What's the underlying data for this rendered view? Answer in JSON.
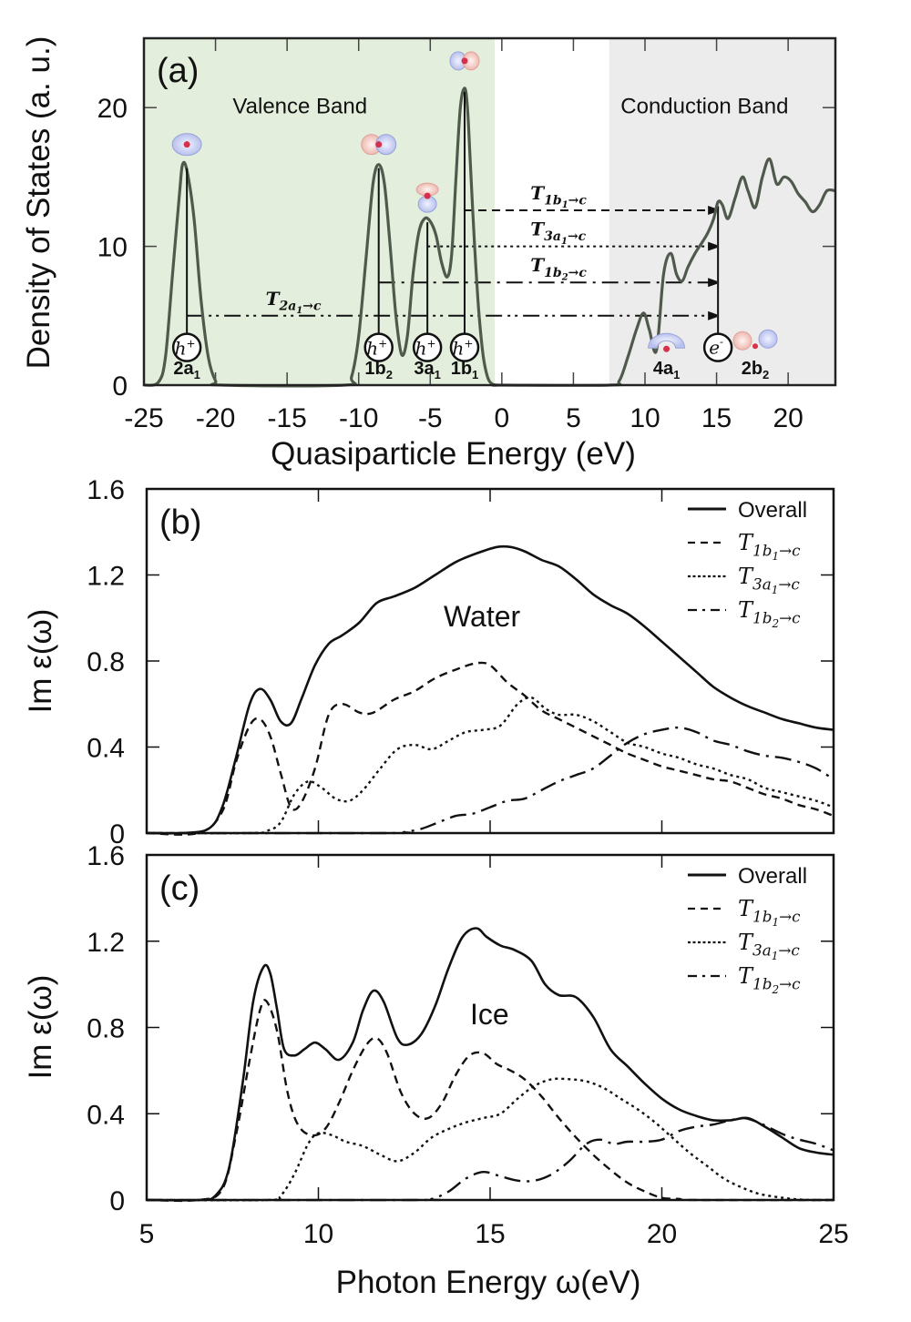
{
  "chart_data": [
    {
      "panel": "(a)",
      "type": "line",
      "xlabel": "Quasiparticle Energy (eV)",
      "ylabel": "Density of States (a. u.)",
      "xlim": [
        -25,
        23.3
      ],
      "ylim": [
        0,
        25
      ],
      "xticks": [
        -25,
        -20,
        -15,
        -10,
        -5,
        0,
        5,
        10,
        15,
        20
      ],
      "yticks": [
        0,
        10,
        20
      ],
      "grid": false,
      "regions": [
        {
          "label": "Valence Band",
          "x_range": [
            -25,
            -0.5
          ],
          "color": "#e3efdc"
        },
        {
          "label": "Conduction Band",
          "x_range": [
            7.5,
            23.3
          ],
          "color": "#ececec"
        }
      ],
      "curve_color": "#4f5a4c",
      "dos": {
        "x": [
          -25,
          -24,
          -23.5,
          -23,
          -22.5,
          -22.3,
          -22,
          -21.5,
          -21,
          -20.5,
          -20,
          -19.5,
          -11,
          -10.5,
          -10,
          -9.5,
          -9,
          -8.6,
          -8.2,
          -7.8,
          -7.4,
          -7,
          -6.6,
          -6.2,
          -5.8,
          -5.4,
          -5,
          -4.6,
          -4.2,
          -3.8,
          -3.5,
          -3.2,
          -2.9,
          -2.6,
          -2.4,
          -2.2,
          -1.9,
          -1.6,
          -1.3,
          -1,
          -0.7,
          -0.3,
          0,
          7.5,
          8.2,
          8.8,
          9.4,
          9.9,
          10.3,
          10.8,
          11.3,
          11.8,
          12.2,
          12.6,
          13.0,
          13.5,
          14.0,
          14.4,
          14.8,
          15.1,
          15.4,
          15.8,
          16.3,
          16.8,
          17.2,
          17.7,
          18.2,
          18.7,
          19.2,
          19.7,
          20.2,
          20.7,
          21.2,
          21.7,
          22.2,
          22.7,
          23.3
        ],
        "y": [
          0,
          0.2,
          2,
          8,
          14,
          15.9,
          15.5,
          12,
          6,
          2,
          0.3,
          0,
          0,
          0.6,
          3.5,
          9,
          14.5,
          15.9,
          14.5,
          10,
          5,
          2.2,
          3.5,
          8,
          11,
          12,
          11.8,
          10.8,
          8.8,
          7.8,
          9.5,
          15,
          20,
          21.4,
          20,
          16,
          10,
          5.2,
          2.1,
          0.6,
          0.1,
          0,
          0,
          0,
          0.3,
          2,
          4,
          5.2,
          4,
          2.5,
          8,
          9.5,
          8,
          7.5,
          8.5,
          9.5,
          10.3,
          11,
          12,
          13.2,
          13,
          12,
          13.5,
          15,
          14,
          12.8,
          15,
          16.3,
          14.5,
          15,
          14.7,
          13.8,
          13.2,
          12.5,
          13,
          14,
          14
        ]
      },
      "annotations": [
        {
          "text": "(a)"
        },
        {
          "text": "Valence Band"
        },
        {
          "text": "Conduction Band"
        }
      ],
      "holes": [
        {
          "orbital": "2a",
          "sub": "1",
          "x": -22,
          "peak": 15.9
        },
        {
          "orbital": "1b",
          "sub": "2",
          "x": -8.6,
          "peak": 15.9
        },
        {
          "orbital": "3a",
          "sub": "1",
          "x": -5.2,
          "peak": 12.0
        },
        {
          "orbital": "1b",
          "sub": "1",
          "x": -2.6,
          "peak": 21.4
        }
      ],
      "hole_symbol": "h",
      "hole_sup": "+",
      "electron": {
        "symbol": "e",
        "sup": "-",
        "x": 15.1
      },
      "unoccupied_orbitals": [
        {
          "orbital": "4a",
          "sub": "1"
        },
        {
          "orbital": "2b",
          "sub": "2"
        }
      ],
      "transitions": [
        {
          "label": "T",
          "sub": "1b",
          "subsub": "1",
          "arrow": "→c",
          "from_x": -2.6,
          "to_x": 15.1,
          "level": 12.6,
          "style": "dashed"
        },
        {
          "label": "T",
          "sub": "3a",
          "subsub": "1",
          "arrow": "→c",
          "from_x": -5.2,
          "to_x": 15.1,
          "level": 10.0,
          "style": "dotted"
        },
        {
          "label": "T",
          "sub": "1b",
          "subsub": "2",
          "arrow": "→c",
          "from_x": -8.6,
          "to_x": 15.1,
          "level": 7.4,
          "style": "dashdot"
        },
        {
          "label": "T",
          "sub": "2a",
          "subsub": "1",
          "arrow": "→c",
          "from_x": -22,
          "to_x": 15.1,
          "level": 5.0,
          "style": "dashdotdot"
        }
      ]
    },
    {
      "panel": "(b)",
      "type": "line",
      "title": "Water",
      "xlabel": "",
      "ylabel": "Im ε(ω)",
      "xlim": [
        5,
        25
      ],
      "ylim": [
        0,
        1.6
      ],
      "xticks": [
        5,
        10,
        15,
        20,
        25
      ],
      "yticks": [
        0,
        0.4,
        0.8,
        1.2,
        1.6
      ],
      "ytick_labels": [
        "0",
        "0.4",
        "0.8",
        "1.2",
        "1.6"
      ],
      "legend_position": "top-right",
      "series": [
        {
          "name": "Overall",
          "style": "solid",
          "x": [
            5,
            6,
            6.8,
            7.2,
            7.6,
            8.0,
            8.3,
            8.6,
            8.9,
            9.2,
            9.5,
            9.9,
            10.3,
            10.7,
            11.2,
            11.7,
            12.2,
            12.8,
            13.4,
            14.0,
            14.6,
            15.2,
            15.6,
            16.0,
            16.5,
            17.0,
            17.5,
            18.0,
            18.5,
            19.0,
            19.5,
            20.0,
            20.5,
            21.0,
            21.5,
            22.0,
            22.5,
            23.0,
            23.5,
            24.0,
            24.5,
            25
          ],
          "y": [
            0,
            0,
            0.02,
            0.12,
            0.35,
            0.6,
            0.67,
            0.62,
            0.52,
            0.51,
            0.62,
            0.78,
            0.88,
            0.92,
            0.98,
            1.07,
            1.1,
            1.14,
            1.2,
            1.26,
            1.3,
            1.33,
            1.33,
            1.31,
            1.27,
            1.24,
            1.18,
            1.11,
            1.06,
            1.02,
            0.96,
            0.89,
            0.82,
            0.75,
            0.68,
            0.63,
            0.59,
            0.56,
            0.53,
            0.51,
            0.49,
            0.48
          ]
        },
        {
          "name": "T1b1→c",
          "label": "T",
          "sub": "1b",
          "subsub": "1",
          "arrow": "→c",
          "style": "dashed",
          "x": [
            5,
            6.5,
            7.2,
            7.6,
            8.0,
            8.3,
            8.6,
            8.9,
            9.2,
            9.5,
            9.9,
            10.3,
            10.7,
            11.2,
            11.6,
            12.2,
            12.8,
            13.4,
            14.0,
            14.6,
            15.0,
            15.5,
            16.0,
            16.5,
            17.0,
            17.5,
            18.0,
            18.5,
            19.0,
            19.5,
            20.0,
            20.5,
            21.0,
            21.5,
            22.0,
            22.5,
            23.0,
            23.5,
            24.0,
            24.5,
            25
          ],
          "y": [
            0,
            0,
            0.1,
            0.33,
            0.5,
            0.53,
            0.45,
            0.28,
            0.12,
            0.14,
            0.3,
            0.55,
            0.6,
            0.56,
            0.56,
            0.62,
            0.66,
            0.72,
            0.76,
            0.79,
            0.78,
            0.7,
            0.64,
            0.57,
            0.53,
            0.49,
            0.45,
            0.41,
            0.37,
            0.34,
            0.31,
            0.29,
            0.27,
            0.25,
            0.24,
            0.21,
            0.18,
            0.16,
            0.13,
            0.11,
            0.08
          ]
        },
        {
          "name": "T3a1→c",
          "label": "T",
          "sub": "3a",
          "subsub": "1",
          "arrow": "→c",
          "style": "dotted",
          "x": [
            5,
            8,
            8.5,
            8.9,
            9.3,
            9.7,
            10.1,
            10.5,
            10.9,
            11.3,
            11.8,
            12.3,
            12.8,
            13.3,
            13.8,
            14.3,
            14.8,
            15.3,
            15.8,
            16.2,
            16.6,
            17.0,
            17.5,
            18.0,
            18.5,
            19.0,
            19.5,
            20.0,
            20.5,
            21.0,
            21.5,
            22.0,
            22.5,
            23.0,
            23.5,
            24.0,
            24.5,
            25
          ],
          "y": [
            0,
            0,
            0.01,
            0.05,
            0.18,
            0.24,
            0.21,
            0.16,
            0.15,
            0.2,
            0.3,
            0.39,
            0.41,
            0.39,
            0.43,
            0.47,
            0.48,
            0.5,
            0.6,
            0.63,
            0.58,
            0.55,
            0.55,
            0.52,
            0.47,
            0.42,
            0.4,
            0.37,
            0.35,
            0.32,
            0.3,
            0.27,
            0.25,
            0.21,
            0.19,
            0.17,
            0.15,
            0.12
          ]
        },
        {
          "name": "T1b2→c",
          "label": "T",
          "sub": "1b",
          "subsub": "2",
          "arrow": "→c",
          "style": "dashdot",
          "x": [
            5,
            12,
            12.5,
            13.0,
            13.5,
            14.0,
            14.5,
            15.0,
            15.5,
            16.0,
            16.5,
            17.0,
            17.5,
            18.0,
            18.5,
            19.0,
            19.5,
            20.0,
            20.5,
            21.0,
            21.5,
            22.0,
            22.5,
            23.0,
            23.5,
            24.0,
            24.5,
            25
          ],
          "y": [
            0,
            0,
            0.005,
            0.02,
            0.05,
            0.08,
            0.09,
            0.12,
            0.15,
            0.16,
            0.2,
            0.24,
            0.27,
            0.3,
            0.36,
            0.42,
            0.46,
            0.48,
            0.49,
            0.47,
            0.43,
            0.41,
            0.38,
            0.36,
            0.35,
            0.33,
            0.3,
            0.25
          ]
        }
      ]
    },
    {
      "panel": "(c)",
      "type": "line",
      "title": "Ice",
      "xlabel": "Photon Energy ω(eV)",
      "ylabel": "Im ε(ω)",
      "xlim": [
        5,
        25
      ],
      "ylim": [
        0,
        1.6
      ],
      "xticks": [
        5,
        10,
        15,
        20,
        25
      ],
      "yticks": [
        0,
        0.4,
        0.8,
        1.2,
        1.6
      ],
      "ytick_labels": [
        "0",
        "0.4",
        "0.8",
        "1.2",
        "1.6"
      ],
      "legend_position": "top-right",
      "series": [
        {
          "name": "Overall",
          "style": "solid",
          "x": [
            5,
            6.5,
            7.0,
            7.4,
            7.8,
            8.1,
            8.4,
            8.6,
            8.8,
            9.0,
            9.3,
            9.6,
            9.9,
            10.2,
            10.6,
            11.0,
            11.3,
            11.6,
            11.9,
            12.3,
            12.6,
            13.0,
            13.4,
            13.8,
            14.2,
            14.6,
            14.9,
            15.3,
            15.7,
            16.2,
            16.6,
            17.0,
            17.5,
            18.0,
            18.5,
            19.0,
            19.5,
            20.0,
            20.5,
            21.0,
            21.5,
            22.0,
            22.5,
            23.0,
            23.5,
            24.0,
            24.5,
            25
          ],
          "y": [
            0,
            0,
            0.02,
            0.15,
            0.55,
            0.92,
            1.08,
            1.05,
            0.88,
            0.7,
            0.67,
            0.7,
            0.73,
            0.7,
            0.65,
            0.73,
            0.88,
            0.97,
            0.92,
            0.75,
            0.72,
            0.77,
            0.9,
            1.08,
            1.22,
            1.26,
            1.22,
            1.18,
            1.16,
            1.11,
            1.0,
            0.95,
            0.94,
            0.85,
            0.7,
            0.62,
            0.54,
            0.47,
            0.42,
            0.39,
            0.37,
            0.37,
            0.38,
            0.34,
            0.29,
            0.24,
            0.22,
            0.21
          ]
        },
        {
          "name": "T1b1→c",
          "label": "T",
          "sub": "1b",
          "subsub": "1",
          "arrow": "→c",
          "style": "dashed",
          "x": [
            5,
            6.5,
            7.2,
            7.6,
            8.0,
            8.3,
            8.5,
            8.8,
            9.1,
            9.4,
            9.8,
            10.2,
            10.6,
            11.0,
            11.4,
            11.7,
            12.0,
            12.4,
            12.8,
            13.2,
            13.6,
            14.0,
            14.4,
            14.8,
            15.2,
            15.6,
            16.0,
            16.5,
            17.0,
            17.5,
            18.0,
            18.5,
            19.0,
            19.5,
            20.0,
            20.5,
            21.0,
            25
          ],
          "y": [
            0,
            0,
            0.05,
            0.3,
            0.65,
            0.88,
            0.92,
            0.78,
            0.5,
            0.35,
            0.3,
            0.33,
            0.45,
            0.6,
            0.72,
            0.75,
            0.68,
            0.5,
            0.4,
            0.38,
            0.45,
            0.58,
            0.67,
            0.68,
            0.63,
            0.6,
            0.56,
            0.48,
            0.38,
            0.29,
            0.21,
            0.14,
            0.08,
            0.04,
            0.01,
            0.005,
            0,
            0
          ]
        },
        {
          "name": "T3a1→c",
          "label": "T",
          "sub": "3a",
          "subsub": "1",
          "arrow": "→c",
          "style": "dotted",
          "x": [
            5,
            8.5,
            8.9,
            9.3,
            9.7,
            10.0,
            10.4,
            10.8,
            11.3,
            11.8,
            12.3,
            12.8,
            13.3,
            13.8,
            14.3,
            14.8,
            15.3,
            15.8,
            16.3,
            16.8,
            17.3,
            17.8,
            18.3,
            18.8,
            19.3,
            19.8,
            20.3,
            20.8,
            21.3,
            21.8,
            22.3,
            22.8,
            23.3,
            23.8,
            24.3,
            25
          ],
          "y": [
            0,
            0,
            0.02,
            0.12,
            0.26,
            0.31,
            0.3,
            0.27,
            0.25,
            0.21,
            0.18,
            0.22,
            0.29,
            0.33,
            0.36,
            0.38,
            0.4,
            0.47,
            0.53,
            0.56,
            0.56,
            0.55,
            0.52,
            0.47,
            0.42,
            0.36,
            0.29,
            0.22,
            0.16,
            0.1,
            0.06,
            0.03,
            0.015,
            0.005,
            0,
            0
          ]
        },
        {
          "name": "T1b2→c",
          "label": "T",
          "sub": "1b",
          "subsub": "2",
          "arrow": "→c",
          "style": "dashdot",
          "x": [
            5,
            12.8,
            13.3,
            13.8,
            14.3,
            14.8,
            15.3,
            15.8,
            16.3,
            16.8,
            17.3,
            17.8,
            18.2,
            18.6,
            19.0,
            19.5,
            20.0,
            20.5,
            21.0,
            21.5,
            22.0,
            22.4,
            22.8,
            23.2,
            23.6,
            24.0,
            24.5,
            25
          ],
          "y": [
            0,
            0,
            0.005,
            0.04,
            0.1,
            0.13,
            0.11,
            0.09,
            0.09,
            0.12,
            0.18,
            0.26,
            0.28,
            0.26,
            0.27,
            0.27,
            0.28,
            0.32,
            0.34,
            0.35,
            0.37,
            0.38,
            0.36,
            0.33,
            0.3,
            0.28,
            0.26,
            0.23
          ]
        }
      ]
    }
  ]
}
